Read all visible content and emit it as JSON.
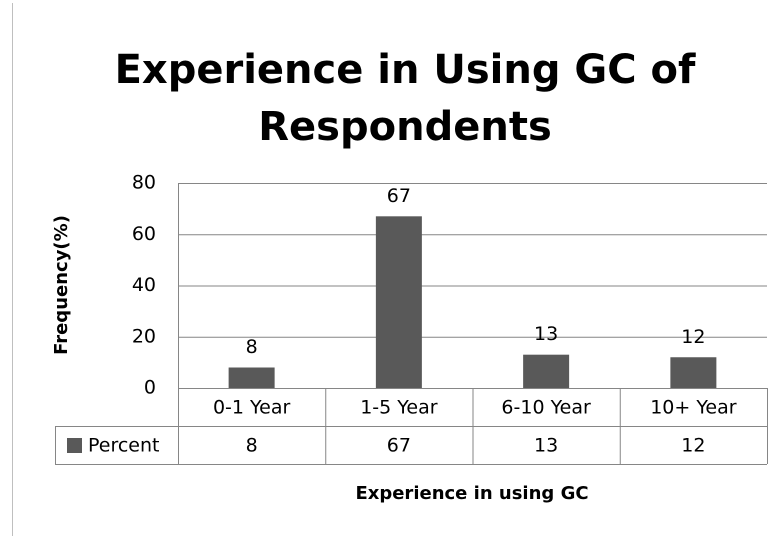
{
  "chart_data": {
    "type": "bar",
    "title": [
      "Experience in Using GC of",
      "Respondents"
    ],
    "x_label": "Experience in using GC",
    "y_label": "Frequency(%)",
    "categories": [
      "0-1 Year",
      "1-5 Year",
      "6-10 Year",
      "10+ Year"
    ],
    "series": [
      {
        "name": "Percent",
        "color": "#595959",
        "values": [
          8,
          67,
          13,
          12
        ]
      }
    ],
    "ylim": [
      0,
      80
    ],
    "yticks": [
      0,
      20,
      40,
      60,
      80
    ],
    "grid": true,
    "data_table": true
  }
}
